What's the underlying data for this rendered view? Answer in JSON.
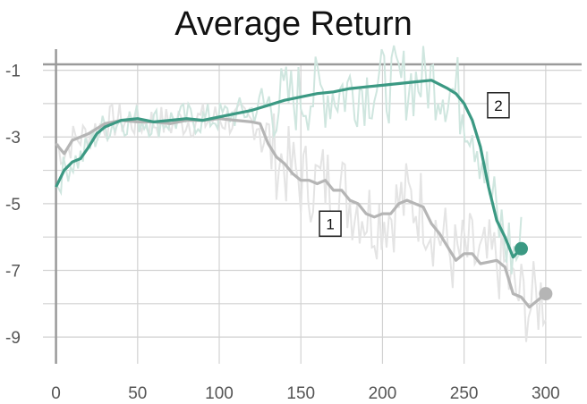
{
  "chart_data": {
    "type": "line",
    "title": "Average Return",
    "xlabel": "",
    "ylabel": "",
    "xlim": [
      -8,
      322
    ],
    "ylim": [
      -9.8,
      -0.1
    ],
    "grid": true,
    "x_ticks": [
      0,
      50,
      100,
      150,
      200,
      250,
      300
    ],
    "y_ticks": [
      -1,
      -3,
      -5,
      -7,
      -9
    ],
    "y_minor_ticks": [
      -2,
      -4,
      -6,
      -8
    ],
    "colors": {
      "series_1": "#b5b5b5",
      "series_2": "#3b9983",
      "series_1_raw": "#e4e4e4",
      "series_2_raw": "#cfe6df"
    },
    "series": [
      {
        "label": "1",
        "x": [
          0,
          5,
          10,
          20,
          30,
          40,
          50,
          60,
          70,
          80,
          90,
          100,
          110,
          120,
          125,
          130,
          135,
          140,
          145,
          150,
          155,
          160,
          165,
          170,
          175,
          180,
          185,
          190,
          195,
          200,
          205,
          210,
          215,
          220,
          225,
          230,
          235,
          240,
          245,
          250,
          255,
          260,
          265,
          270,
          275,
          280,
          285,
          290,
          295,
          300
        ],
        "y": [
          -3.2,
          -3.5,
          -3.1,
          -2.9,
          -2.6,
          -2.5,
          -2.55,
          -2.55,
          -2.6,
          -2.5,
          -2.5,
          -2.45,
          -2.5,
          -2.55,
          -2.6,
          -3.2,
          -3.6,
          -3.8,
          -4.1,
          -4.3,
          -4.3,
          -4.4,
          -4.3,
          -4.6,
          -4.6,
          -4.9,
          -5.0,
          -5.3,
          -5.4,
          -5.3,
          -5.3,
          -5.0,
          -4.9,
          -5.0,
          -5.1,
          -5.6,
          -5.9,
          -6.3,
          -6.7,
          -6.5,
          -6.5,
          -6.8,
          -6.75,
          -6.7,
          -6.9,
          -7.7,
          -7.8,
          -8.1,
          -7.9,
          -7.7
        ]
      },
      {
        "label": "2",
        "x": [
          0,
          5,
          10,
          15,
          20,
          25,
          30,
          40,
          50,
          60,
          70,
          80,
          90,
          100,
          110,
          120,
          130,
          140,
          150,
          160,
          170,
          180,
          190,
          200,
          210,
          220,
          230,
          240,
          245,
          250,
          255,
          260,
          265,
          270,
          275,
          280,
          285
        ],
        "y": [
          -4.5,
          -4.0,
          -3.75,
          -3.65,
          -3.3,
          -2.9,
          -2.7,
          -2.5,
          -2.45,
          -2.55,
          -2.5,
          -2.45,
          -2.5,
          -2.4,
          -2.3,
          -2.2,
          -2.05,
          -1.9,
          -1.8,
          -1.7,
          -1.65,
          -1.55,
          -1.5,
          -1.45,
          -1.4,
          -1.35,
          -1.3,
          -1.55,
          -1.7,
          -2.0,
          -2.5,
          -3.3,
          -4.5,
          -5.5,
          -6.0,
          -6.6,
          -6.35
        ]
      }
    ],
    "end_markers": [
      {
        "series": "1",
        "x": 300,
        "y": -7.7
      },
      {
        "series": "2",
        "x": 285,
        "y": -6.35
      }
    ],
    "annotations": [
      {
        "text": "1",
        "x": 168,
        "y": -5.6
      },
      {
        "text": "2",
        "x": 271,
        "y": -2.05
      }
    ]
  }
}
